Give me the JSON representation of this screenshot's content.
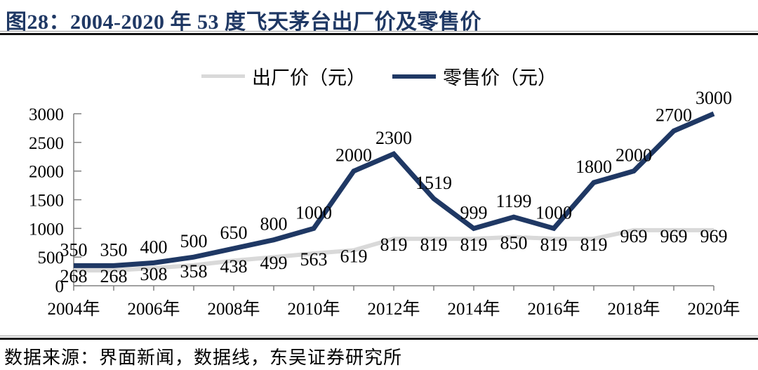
{
  "figure": {
    "title": "图28：2004-2020 年 53 度飞天茅台出厂价及零售价",
    "source": "数据来源：界面新闻，数据线，东吴证券研究所"
  },
  "colors": {
    "title_navy": "#1f3864",
    "retail_line": "#1f3864",
    "factory_line": "#d9d9d9",
    "axis": "#808080",
    "data_label_text": "#000000",
    "separator_thick": "#111111",
    "separator_thin": "#9a9a9a"
  },
  "chart_data": {
    "type": "line",
    "title": "2004-2020 年 53 度飞天茅台出厂价及零售价",
    "x": [
      2004,
      2005,
      2006,
      2007,
      2008,
      2009,
      2010,
      2011,
      2012,
      2013,
      2014,
      2015,
      2016,
      2017,
      2018,
      2019,
      2020
    ],
    "x_axis_labels": [
      "2004年",
      "2006年",
      "2008年",
      "2010年",
      "2012年",
      "2014年",
      "2016年",
      "2018年",
      "2020年"
    ],
    "x_label_step": 2,
    "series": [
      {
        "name": "出厂价（元）",
        "color": "#d9d9d9",
        "label_position": "below",
        "values": [
          268,
          268,
          308,
          358,
          438,
          499,
          563,
          619,
          819,
          819,
          819,
          850,
          819,
          819,
          969,
          969,
          969
        ]
      },
      {
        "name": "零售价（元）",
        "color": "#1f3864",
        "label_position": "above",
        "values": [
          350,
          350,
          400,
          500,
          650,
          800,
          1000,
          2000,
          2300,
          1519,
          999,
          1199,
          1000,
          1800,
          2000,
          2700,
          3000
        ]
      }
    ],
    "ylim": [
      0,
      3000
    ],
    "yticks": [
      0,
      500,
      1000,
      1500,
      2000,
      2500,
      3000
    ],
    "legend_position": "top",
    "grid": false,
    "data_labels": true
  }
}
